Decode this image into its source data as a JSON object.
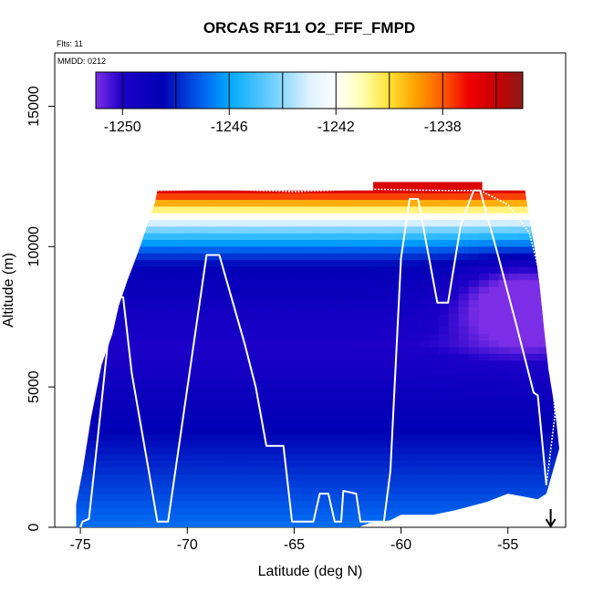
{
  "chart_data": {
    "type": "heatmap",
    "title": "ORCAS RF11 O2_FFF_FMPD",
    "annotations": {
      "flights": "Flts: 11",
      "date": "MMDD: 0212"
    },
    "xlabel": "Latitude (deg N)",
    "ylabel": "Altitude (m)",
    "xlim": [
      -76.2,
      -52.3
    ],
    "ylim": [
      0,
      16900
    ],
    "x_ticks": [
      -75,
      -70,
      -65,
      -60,
      -55
    ],
    "x_tick_labels": [
      "-75",
      "-70",
      "-65",
      "-60",
      "-55"
    ],
    "y_ticks": [
      0,
      5000,
      10000,
      15000
    ],
    "y_tick_labels": [
      "0",
      "5000",
      "10000",
      "15000"
    ],
    "colorbar": {
      "min": -1251,
      "max": -1235,
      "ticks": [
        -1250,
        -1246,
        -1242,
        -1238
      ],
      "tick_labels": [
        "-1250",
        "-1246",
        "-1242",
        "-1238"
      ],
      "stops": [
        {
          "value": -1251,
          "color": "#7b2ee6"
        },
        {
          "value": -1250,
          "color": "#1c00c8"
        },
        {
          "value": -1248.5,
          "color": "#0000b4"
        },
        {
          "value": -1247,
          "color": "#0062ee"
        },
        {
          "value": -1246,
          "color": "#00aaff"
        },
        {
          "value": -1244.5,
          "color": "#66ccff"
        },
        {
          "value": -1243,
          "color": "#dff2ff"
        },
        {
          "value": -1242,
          "color": "#ffffff"
        },
        {
          "value": -1241,
          "color": "#ffffb0"
        },
        {
          "value": -1240,
          "color": "#ffe033"
        },
        {
          "value": -1239,
          "color": "#ffa000"
        },
        {
          "value": -1238,
          "color": "#ff5a00"
        },
        {
          "value": -1237,
          "color": "#ee0000"
        },
        {
          "value": -1236,
          "color": "#c80000"
        },
        {
          "value": -1235,
          "color": "#8b1a1a"
        }
      ]
    },
    "field": {
      "surface_value": -1246.8,
      "lat_range": [
        -75.2,
        -52.6
      ],
      "outline": [
        [
          -75.2,
          0
        ],
        [
          -75.2,
          800
        ],
        [
          -74.9,
          2000
        ],
        [
          -74.5,
          3900
        ],
        [
          -74.0,
          5800
        ],
        [
          -73.5,
          6900
        ],
        [
          -73.2,
          7900
        ],
        [
          -72.8,
          8800
        ],
        [
          -72.3,
          9800
        ],
        [
          -71.9,
          10700
        ],
        [
          -71.5,
          11600
        ],
        [
          -71.4,
          12000
        ],
        [
          -61.3,
          12000
        ],
        [
          -61.3,
          12300
        ],
        [
          -56.2,
          12300
        ],
        [
          -56.2,
          12000
        ],
        [
          -54.2,
          12000
        ],
        [
          -54.0,
          11000
        ],
        [
          -53.7,
          9700
        ],
        [
          -53.5,
          8500
        ],
        [
          -53.3,
          7000
        ],
        [
          -53.1,
          5600
        ],
        [
          -52.8,
          4200
        ],
        [
          -52.6,
          2800
        ],
        [
          -53.2,
          1200
        ],
        [
          -53.6,
          1000
        ],
        [
          -55.0,
          1200
        ],
        [
          -56.0,
          900
        ],
        [
          -57.5,
          600
        ],
        [
          -58.5,
          450
        ],
        [
          -60.0,
          450
        ],
        [
          -60.5,
          250
        ],
        [
          -61.5,
          150
        ],
        [
          -62.0,
          0
        ]
      ],
      "depression": {
        "center": [
          -54.3,
          8000
        ],
        "amplitude": 2.8,
        "lat_scale": 3.0,
        "alt_scale": 1500
      }
    },
    "flight_track": [
      [
        -75.0,
        0
      ],
      [
        -74.9,
        200
      ],
      [
        -74.6,
        300
      ],
      [
        -74.0,
        4500
      ],
      [
        -73.5,
        8200
      ],
      [
        -73.0,
        8200
      ],
      [
        -72.6,
        5500
      ],
      [
        -71.8,
        2000
      ],
      [
        -71.4,
        200
      ],
      [
        -70.9,
        200
      ],
      [
        -69.1,
        9700
      ],
      [
        -68.5,
        9700
      ],
      [
        -67.3,
        6500
      ],
      [
        -66.8,
        5000
      ],
      [
        -66.3,
        2900
      ],
      [
        -65.5,
        2900
      ],
      [
        -65.1,
        200
      ],
      [
        -64.1,
        200
      ],
      [
        -63.8,
        1200
      ],
      [
        -63.4,
        1200
      ],
      [
        -63.1,
        200
      ],
      [
        -62.8,
        200
      ],
      [
        -62.7,
        1300
      ],
      [
        -62.1,
        1200
      ],
      [
        -61.9,
        200
      ],
      [
        -60.8,
        200
      ],
      [
        -60.5,
        2000
      ],
      [
        -60.0,
        9600
      ],
      [
        -59.6,
        11700
      ],
      [
        -59.2,
        11700
      ],
      [
        -58.3,
        8000
      ],
      [
        -57.8,
        8000
      ],
      [
        -57.2,
        10800
      ],
      [
        -56.6,
        12000
      ],
      [
        -56.3,
        12000
      ],
      [
        -55.5,
        9800
      ],
      [
        -54.6,
        7200
      ],
      [
        -53.8,
        4800
      ],
      [
        -53.6,
        4700
      ],
      [
        -53.2,
        1500
      ]
    ],
    "flight_track_upper": [
      [
        -71.4,
        12000
      ],
      [
        -68.5,
        12050
      ],
      [
        -65.0,
        11960
      ],
      [
        -61.7,
        12050
      ],
      [
        -58.0,
        12000
      ],
      [
        -56.3,
        12000
      ],
      [
        -55.0,
        11500
      ],
      [
        -54.0,
        10500
      ],
      [
        -53.5,
        9000
      ],
      [
        -53.0,
        6500
      ],
      [
        -52.8,
        4000
      ],
      [
        -53.2,
        1500
      ]
    ],
    "arrow_marker": {
      "lat": -53.0,
      "alt_top": 650,
      "alt_bottom": 0,
      "symbol": "↓"
    }
  }
}
